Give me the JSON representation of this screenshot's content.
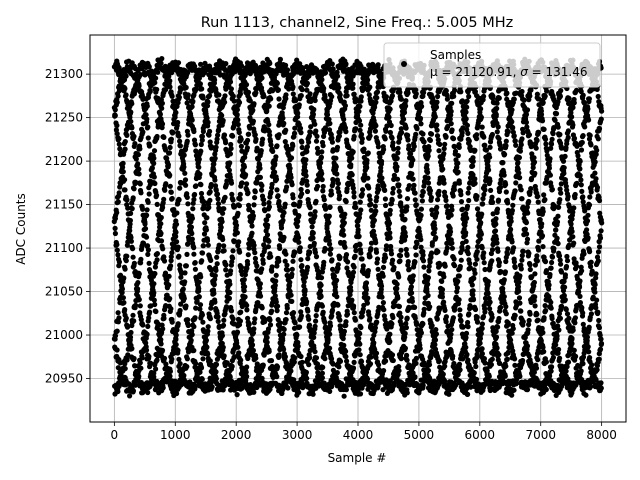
{
  "chart_data": {
    "type": "scatter",
    "title": "Run 1113, channel2, Sine Freq.: 5.005 MHz",
    "xlabel": "Sample #",
    "ylabel": "ADC Counts",
    "xlim": [
      -400,
      8400
    ],
    "ylim": [
      20900,
      21345
    ],
    "xticks": [
      0,
      1000,
      2000,
      3000,
      4000,
      5000,
      6000,
      7000,
      8000
    ],
    "yticks": [
      20950,
      21000,
      21050,
      21100,
      21150,
      21200,
      21250,
      21300
    ],
    "grid": true,
    "legend": {
      "placement": "top-right",
      "series_name": "Samples",
      "stats_prefix": "μ = 21120.91, ",
      "stats_sigma": "σ",
      "stats_suffix": " = 131.46"
    },
    "series": [
      {
        "name": "Samples",
        "color": "#000000",
        "model": {
          "description_of_points": "8000 ADC samples of a sine wave aliased into 8 crossing envelope traces",
          "n_samples": 8000,
          "mean": 21120.91,
          "amplitude": 185,
          "envelope_period_samples": 2000,
          "phase_offsets_samples": [
            0,
            250,
            500,
            750,
            1000,
            1250,
            1500,
            1750
          ],
          "noise_counts": 6
        }
      }
    ],
    "colors": {
      "points": "#000000",
      "grid": "#b0b0b0",
      "legend_border": "#cccccc"
    }
  }
}
